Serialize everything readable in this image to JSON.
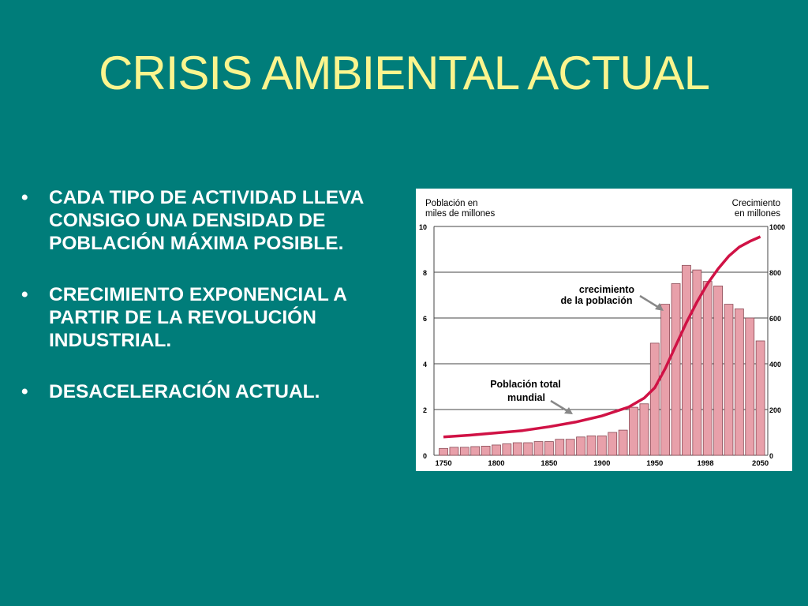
{
  "slide": {
    "title": "CRISIS AMBIENTAL ACTUAL",
    "bullets": [
      "CADA TIPO DE ACTIVIDAD LLEVA CONSIGO UNA DENSIDAD DE POBLACIÓN MÁXIMA POSIBLE.",
      "CRECIMIENTO EXPONENCIAL A PARTIR DE LA REVOLUCIÓN INDUSTRIAL.",
      "DESACELERACIÓN ACTUAL."
    ],
    "bullet_symbol": "•"
  },
  "colors": {
    "background": "#007d7a",
    "title": "#fbf58e",
    "text": "#ffffff",
    "bar_fill": "#e8a0aa",
    "bar_stroke": "#8a4a55",
    "line": "#d01245",
    "arrow": "#888888"
  },
  "chart_data": {
    "type": "bar",
    "left_axis_label": [
      "Población en",
      "miles de millones"
    ],
    "right_axis_label": [
      "Crecimiento",
      "en millones"
    ],
    "left_ylim": [
      0,
      10
    ],
    "left_ticks": [
      "0",
      "2",
      "4",
      "6",
      "8",
      "10"
    ],
    "right_ylim": [
      0,
      1000
    ],
    "right_ticks": [
      "0",
      "200",
      "400",
      "600",
      "800",
      "1000"
    ],
    "x_ticks": [
      "1750",
      "1800",
      "1850",
      "1900",
      "1950",
      "1998",
      "2050"
    ],
    "grid": true,
    "series": [
      {
        "kind": "bar",
        "axis": "right",
        "x": [
          1750,
          1760,
          1770,
          1780,
          1790,
          1800,
          1810,
          1820,
          1830,
          1840,
          1850,
          1860,
          1870,
          1880,
          1890,
          1900,
          1910,
          1920,
          1930,
          1940,
          1950,
          1960,
          1970,
          1980,
          1990,
          2000,
          2010,
          2020,
          2030,
          2040,
          2050
        ],
        "values": [
          30,
          35,
          35,
          38,
          40,
          45,
          50,
          55,
          55,
          60,
          60,
          70,
          70,
          80,
          85,
          85,
          100,
          110,
          210,
          225,
          490,
          660,
          750,
          830,
          810,
          760,
          740,
          660,
          640,
          600,
          500
        ]
      },
      {
        "kind": "line",
        "axis": "left",
        "x": [
          1750,
          1775,
          1800,
          1825,
          1850,
          1875,
          1900,
          1925,
          1940,
          1950,
          1960,
          1970,
          1980,
          1990,
          2000,
          2010,
          2020,
          2030,
          2040,
          2050
        ],
        "values": [
          0.8,
          0.88,
          0.98,
          1.08,
          1.25,
          1.45,
          1.72,
          2.1,
          2.5,
          2.95,
          3.8,
          4.8,
          5.8,
          6.7,
          7.5,
          8.15,
          8.7,
          9.1,
          9.35,
          9.55
        ]
      }
    ],
    "annotations": [
      [
        "crecimiento",
        "de la población"
      ],
      [
        "Población total",
        "mundial"
      ]
    ]
  }
}
